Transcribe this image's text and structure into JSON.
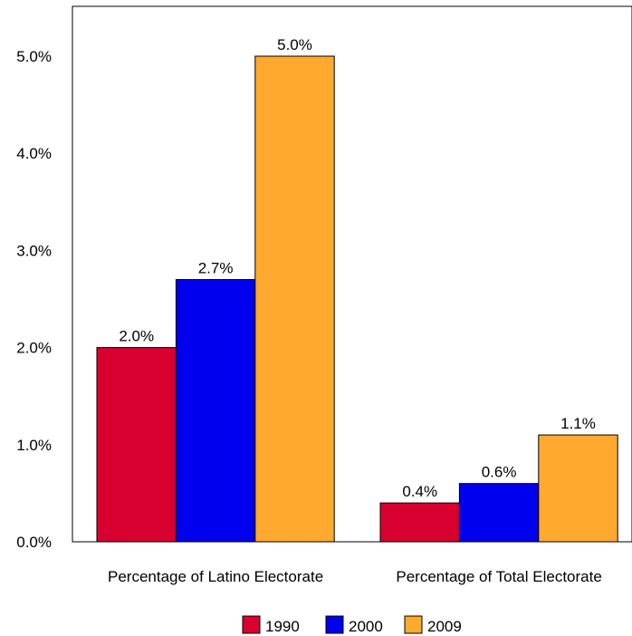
{
  "chart_data": {
    "type": "bar",
    "categories": [
      "Percentage of Latino Electorate",
      "Percentage of Total Electorate"
    ],
    "series": [
      {
        "name": "1990",
        "values": [
          2.0,
          0.4
        ],
        "labels": [
          "2.0%",
          "0.4%"
        ],
        "color": "#d8002f"
      },
      {
        "name": "2000",
        "values": [
          2.7,
          0.6
        ],
        "labels": [
          "2.7%",
          "0.6%"
        ],
        "color": "#0000ee"
      },
      {
        "name": "2009",
        "values": [
          5.0,
          1.1
        ],
        "labels": [
          "5.0%",
          "1.1%"
        ],
        "color": "#ffa92e"
      }
    ],
    "yticks": [
      0,
      1,
      2,
      3,
      4,
      5
    ],
    "ytick_labels": [
      "0.0%",
      "1.0%",
      "2.0%",
      "3.0%",
      "4.0%",
      "5.0%"
    ],
    "ylim": [
      0,
      5.5
    ],
    "legend_position": "bottom",
    "grid": false
  }
}
